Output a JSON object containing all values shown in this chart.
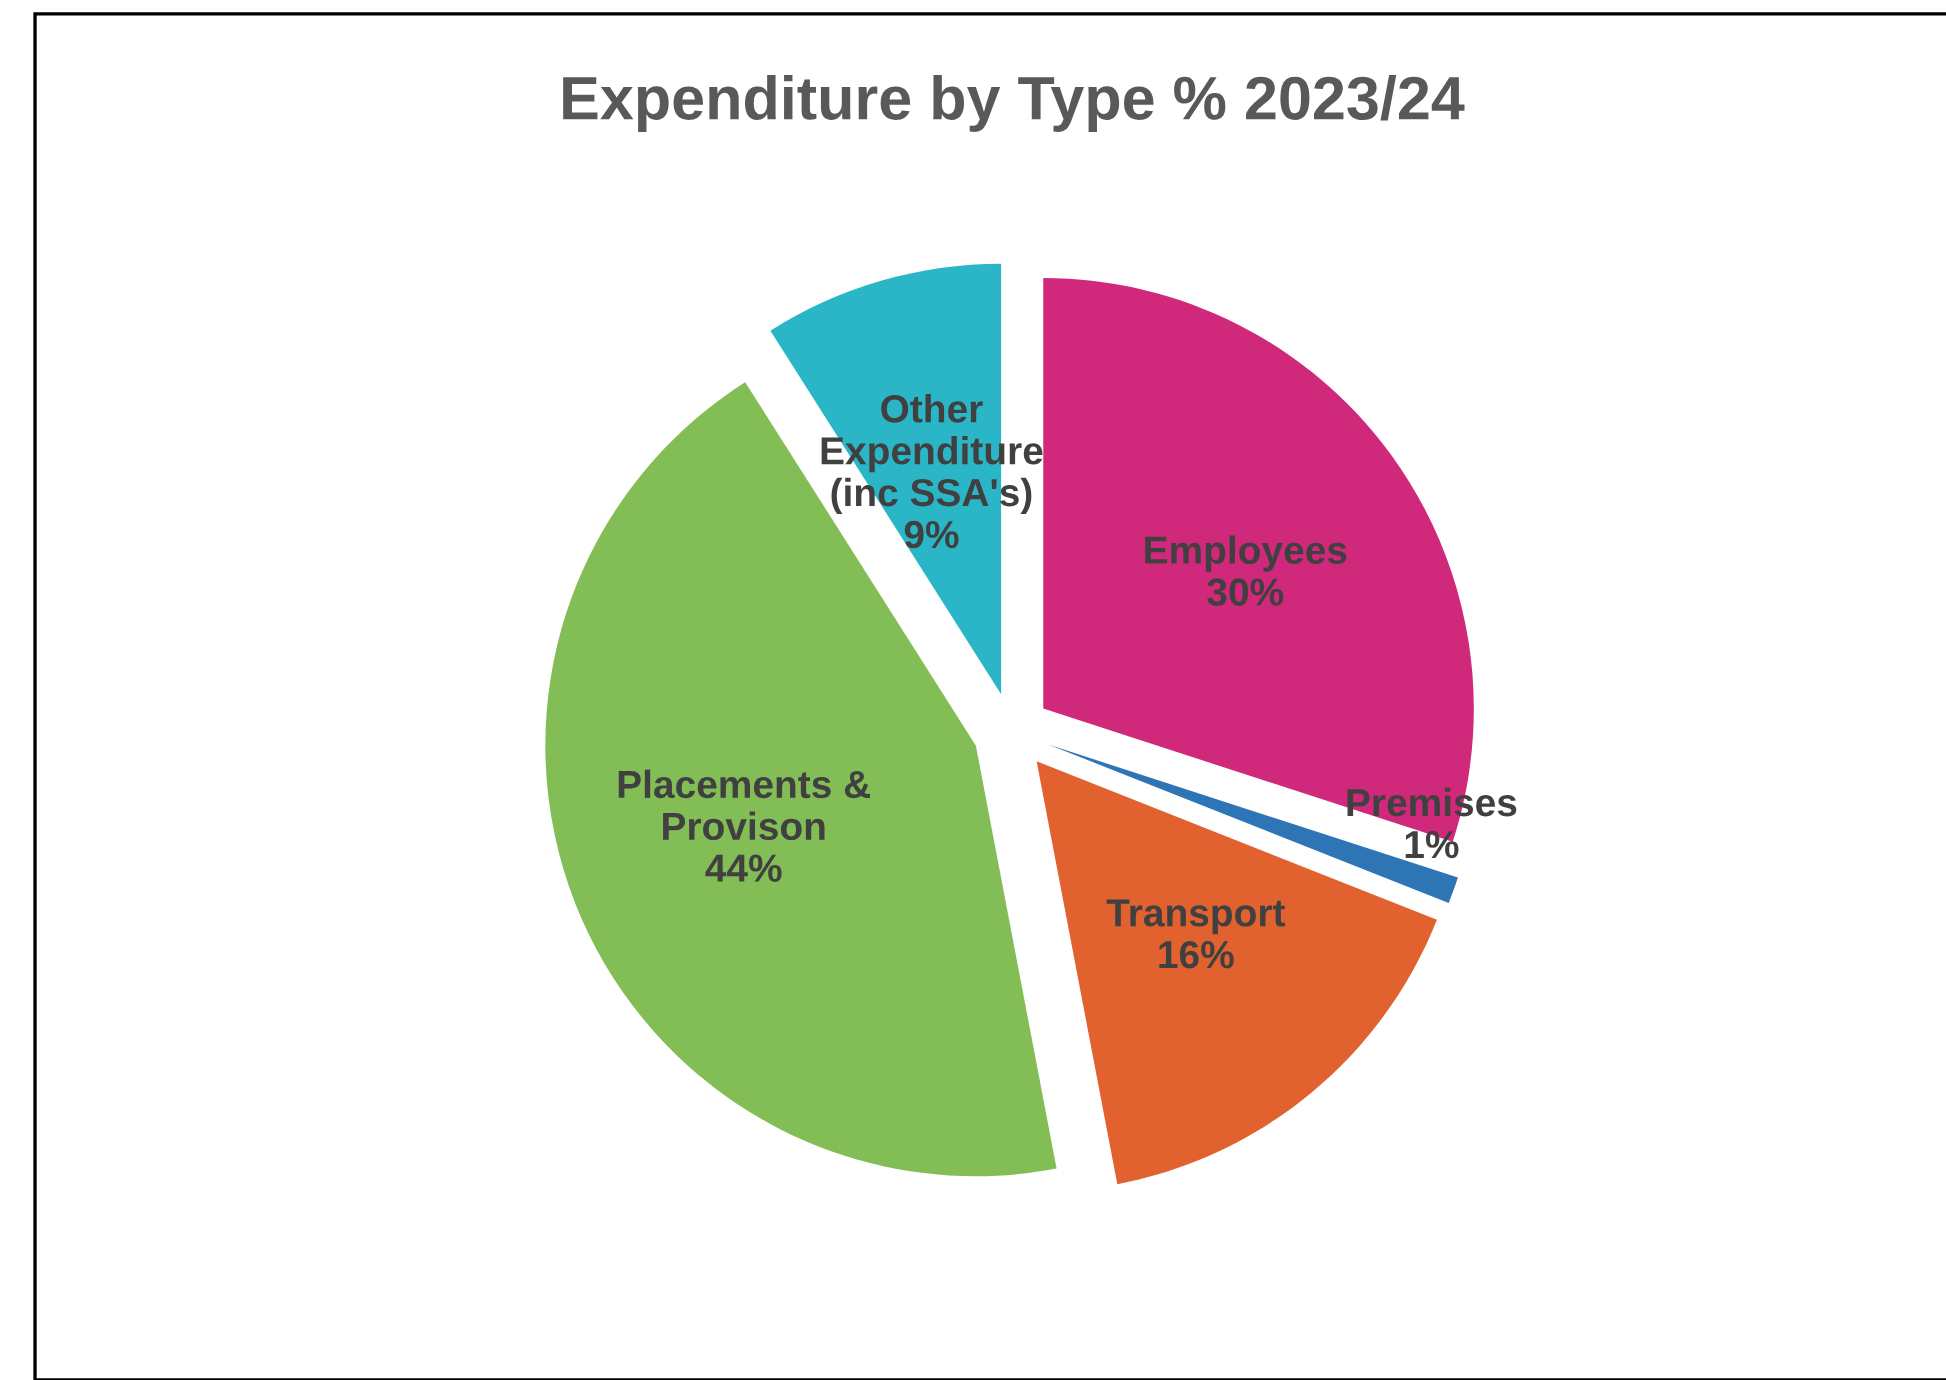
{
  "chart_data": {
    "type": "pie",
    "title": "Expenditure by Type % 2023/24",
    "categories": [
      "Employees",
      "Premises",
      "Transport",
      "Placements &\nProvison",
      "Other\nExpenditure\n(inc SSA's)"
    ],
    "values": [
      30,
      1,
      16,
      44,
      9
    ],
    "value_labels": [
      "30%",
      "1%",
      "16%",
      "44%",
      "9%"
    ],
    "colors": [
      "#d0287b",
      "#2e75b6",
      "#e2622f",
      "#82bd55",
      "#2ab6c6"
    ],
    "legend": false
  }
}
